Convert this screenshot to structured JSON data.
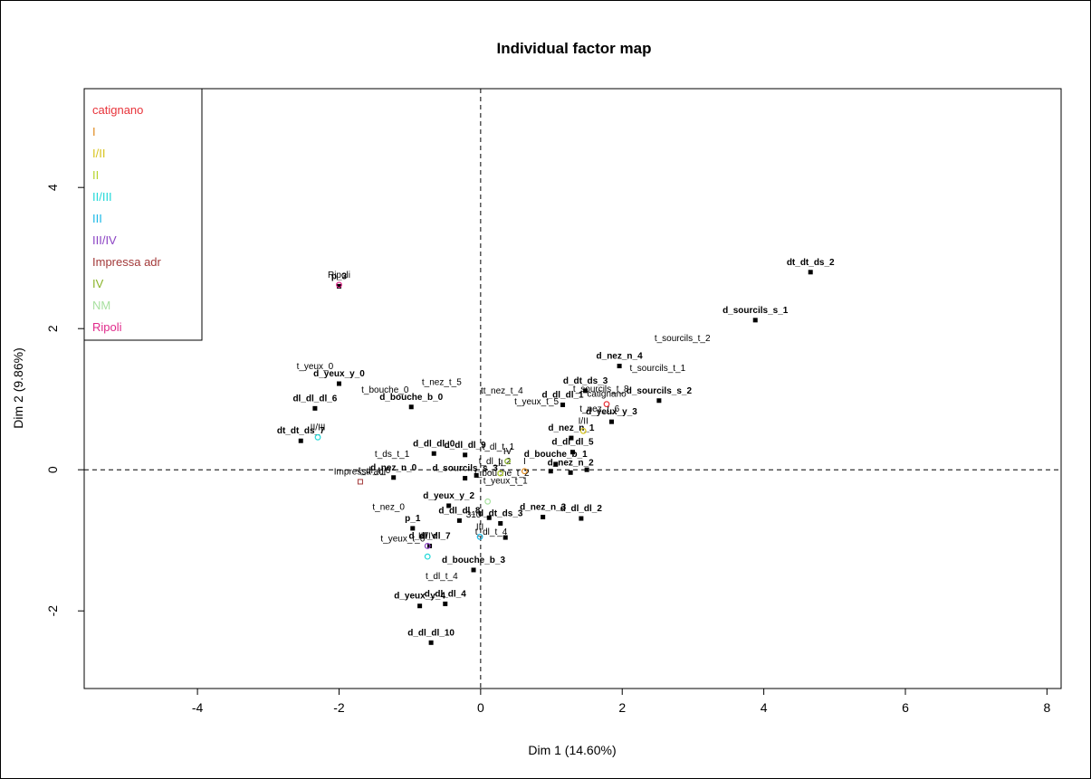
{
  "chart_data": {
    "type": "scatter",
    "title": "Individual factor map",
    "xlabel": "Dim 1 (14.60%)",
    "ylabel": "Dim 2 (9.86%)",
    "xlim": [
      -5.6,
      8.2
    ],
    "ylim": [
      -3.1,
      5.4
    ],
    "xticks": [
      -4,
      -2,
      0,
      2,
      4,
      6,
      8
    ],
    "yticks": [
      -2,
      0,
      2,
      4
    ],
    "xtick_labels": [
      "-4",
      "-2",
      "0",
      "2",
      "4",
      "6",
      "8"
    ],
    "ytick_labels": [
      "-2",
      "0",
      "2",
      "4"
    ],
    "reference_lines": {
      "x": 0,
      "y": 0,
      "style": "dashed"
    },
    "legend": {
      "position": "top-left",
      "entries": [
        {
          "label": "catignano",
          "color": "#e8333a"
        },
        {
          "label": "I",
          "color": "#e08a1e"
        },
        {
          "label": "I/II",
          "color": "#d8c41c"
        },
        {
          "label": "II",
          "color": "#b5d42a"
        },
        {
          "label": "II/III",
          "color": "#22d8d8"
        },
        {
          "label": "III",
          "color": "#1ab8e6"
        },
        {
          "label": "III/IV",
          "color": "#8c44c4"
        },
        {
          "label": "Impressa adr",
          "color": "#a33a3a"
        },
        {
          "label": "IV",
          "color": "#8ab42a"
        },
        {
          "label": "NM",
          "color": "#a8e0a0"
        },
        {
          "label": "Ripoli",
          "color": "#e0288a"
        }
      ]
    },
    "points": [
      {
        "x": 4.66,
        "y": 2.8,
        "label": "dt_dt_ds_2",
        "color": "#000000",
        "marker": "square",
        "bold": true
      },
      {
        "x": 3.88,
        "y": 2.12,
        "label": "d_sourcils_s_1",
        "color": "#000000",
        "marker": "square",
        "bold": true
      },
      {
        "x": 2.52,
        "y": 0.98,
        "label": "d_sourcils_s_2",
        "color": "#000000",
        "marker": "square",
        "bold": true
      },
      {
        "x": 1.96,
        "y": 1.47,
        "label": "d_nez_n_4",
        "color": "#000000",
        "marker": "square",
        "bold": true
      },
      {
        "x": 1.48,
        "y": 1.12,
        "label": "d_dt_ds_3",
        "color": "#000000",
        "marker": "square",
        "bold": true
      },
      {
        "x": 1.16,
        "y": 0.92,
        "label": "d_dl_dl_1",
        "color": "#000000",
        "marker": "square",
        "bold": true
      },
      {
        "x": 1.85,
        "y": 0.68,
        "label": "d_yeux_y_3",
        "color": "#000000",
        "marker": "square",
        "bold": true
      },
      {
        "x": 1.28,
        "y": 0.45,
        "label": "d_nez_n_1",
        "color": "#000000",
        "marker": "square",
        "bold": true
      },
      {
        "x": 1.3,
        "y": 0.25,
        "label": "d_dl_dl_5",
        "color": "#000000",
        "marker": "square",
        "bold": true
      },
      {
        "x": 1.06,
        "y": 0.08,
        "label": "d_bouche_b_1",
        "color": "#000000",
        "marker": "square",
        "bold": true
      },
      {
        "x": 1.27,
        "y": -0.04,
        "label": "d_nez_n_2",
        "color": "#000000",
        "marker": "square",
        "bold": true
      },
      {
        "x": 0.99,
        "y": -0.02,
        "label": "",
        "color": "#000000",
        "marker": "square",
        "bold": true
      },
      {
        "x": 1.42,
        "y": -0.69,
        "label": "d_dl_dl_2",
        "color": "#000000",
        "marker": "square",
        "bold": true
      },
      {
        "x": 0.88,
        "y": -0.67,
        "label": "d_nez_n_3",
        "color": "#000000",
        "marker": "square",
        "bold": true
      },
      {
        "x": 0.35,
        "y": -0.96,
        "label": "",
        "color": "#000000",
        "marker": "square",
        "bold": true
      },
      {
        "x": 0.28,
        "y": -0.76,
        "label": "d_dt_ds_3",
        "color": "#000000",
        "marker": "square",
        "bold": true
      },
      {
        "x": -0.1,
        "y": -1.42,
        "label": "d_bouche_b_3",
        "color": "#000000",
        "marker": "square",
        "bold": true
      },
      {
        "x": -0.5,
        "y": -1.9,
        "label": "d_dl_dl_4",
        "color": "#000000",
        "marker": "square",
        "bold": true
      },
      {
        "x": -0.86,
        "y": -1.93,
        "label": "d_yeux_y_4",
        "color": "#000000",
        "marker": "square",
        "bold": true
      },
      {
        "x": -0.7,
        "y": -2.45,
        "label": "d_dl_dl_10",
        "color": "#000000",
        "marker": "square",
        "bold": true
      },
      {
        "x": -0.72,
        "y": -1.08,
        "label": "d_dl_dl_7",
        "color": "#000000",
        "marker": "square",
        "bold": true
      },
      {
        "x": -0.96,
        "y": -0.83,
        "label": "p_1",
        "color": "#000000",
        "marker": "square",
        "bold": true
      },
      {
        "x": -0.45,
        "y": -0.51,
        "label": "d_yeux_y_2",
        "color": "#000000",
        "marker": "square",
        "bold": true
      },
      {
        "x": -0.3,
        "y": -0.72,
        "label": "d_dl_dl_8",
        "color": "#000000",
        "marker": "square",
        "bold": true
      },
      {
        "x": -0.22,
        "y": -0.12,
        "label": "d_sourcils_s_3",
        "color": "#000000",
        "marker": "square",
        "bold": true
      },
      {
        "x": -0.22,
        "y": 0.21,
        "label": "d_dl_dl_9",
        "color": "#000000",
        "marker": "square",
        "bold": true
      },
      {
        "x": -0.66,
        "y": 0.23,
        "label": "d_dl_dl_0",
        "color": "#000000",
        "marker": "square",
        "bold": true
      },
      {
        "x": -1.23,
        "y": -0.11,
        "label": "d_nez_n_0",
        "color": "#000000",
        "marker": "square",
        "bold": true
      },
      {
        "x": -0.98,
        "y": 0.89,
        "label": "d_bouche_b_0",
        "color": "#000000",
        "marker": "square",
        "bold": true
      },
      {
        "x": -2.0,
        "y": 1.22,
        "label": "d_yeux_y_0",
        "color": "#000000",
        "marker": "square",
        "bold": true
      },
      {
        "x": -2.34,
        "y": 0.87,
        "label": "dl_dl_dl_6",
        "color": "#000000",
        "marker": "square",
        "bold": true
      },
      {
        "x": -2.54,
        "y": 0.41,
        "label": "dt_dt_ds_7",
        "color": "#000000",
        "marker": "square",
        "bold": true
      },
      {
        "x": -2.0,
        "y": 2.6,
        "label": "p_3",
        "color": "#000000",
        "marker": "square",
        "bold": true
      },
      {
        "x": -0.06,
        "y": -0.08,
        "label": "",
        "color": "#000000",
        "marker": "square",
        "bold": true
      },
      {
        "x": 0.12,
        "y": -0.68,
        "label": "",
        "color": "#000000",
        "marker": "square",
        "bold": true
      },
      {
        "x": 1.5,
        "y": 0.0,
        "label": "",
        "color": "#000000",
        "marker": "square",
        "bold": true
      },
      {
        "x": 2.5,
        "y": 1.3,
        "label": "t_sourcils_t_1",
        "color": "#000000",
        "marker": "none",
        "bold": false
      },
      {
        "x": 2.85,
        "y": 1.72,
        "label": "t_sourcils_t_2",
        "color": "#000000",
        "marker": "none",
        "bold": false
      },
      {
        "x": 1.7,
        "y": 1.0,
        "label": "t_sourcils_t_8",
        "color": "#000000",
        "marker": "none",
        "bold": false
      },
      {
        "x": 1.68,
        "y": 0.72,
        "label": "t_nez_t_6",
        "color": "#000000",
        "marker": "none",
        "bold": false
      },
      {
        "x": 0.79,
        "y": 0.82,
        "label": "t_yeux_t_5",
        "color": "#000000",
        "marker": "none",
        "bold": false
      },
      {
        "x": 0.3,
        "y": 0.98,
        "label": "tt_nez_t_4",
        "color": "#000000",
        "marker": "none",
        "bold": false
      },
      {
        "x": -0.55,
        "y": 1.1,
        "label": "t_nez_t_5",
        "color": "#000000",
        "marker": "none",
        "bold": false
      },
      {
        "x": -1.35,
        "y": 0.99,
        "label": "t_bouche_0",
        "color": "#000000",
        "marker": "none",
        "bold": false
      },
      {
        "x": -2.34,
        "y": 1.32,
        "label": "t_yeux_0",
        "color": "#000000",
        "marker": "none",
        "bold": false
      },
      {
        "x": -1.25,
        "y": 0.08,
        "label": "t_ds_t_1",
        "color": "#000000",
        "marker": "none",
        "bold": false
      },
      {
        "x": -1.5,
        "y": -0.15,
        "label": "t_dl_t_0",
        "color": "#000000",
        "marker": "none",
        "bold": false
      },
      {
        "x": -1.3,
        "y": -0.67,
        "label": "t_nez_0",
        "color": "#000000",
        "marker": "none",
        "bold": false
      },
      {
        "x": -1.1,
        "y": -1.12,
        "label": "t_yeux_t_6",
        "color": "#000000",
        "marker": "none",
        "bold": false
      },
      {
        "x": 0.15,
        "y": -1.02,
        "label": "t_dl_t_4",
        "color": "#000000",
        "marker": "none",
        "bold": false
      },
      {
        "x": -0.55,
        "y": -1.65,
        "label": "t_dl_t_4",
        "color": "#000000",
        "marker": "none",
        "bold": false
      },
      {
        "x": 0.3,
        "y": -0.19,
        "label": "t_bouche_t_2",
        "color": "#000000",
        "marker": "none",
        "bold": false
      },
      {
        "x": 0.35,
        "y": -0.3,
        "label": "t_yeux_t_1",
        "color": "#000000",
        "marker": "none",
        "bold": false
      },
      {
        "x": 0.25,
        "y": 0.18,
        "label": "t_dl_t_1",
        "color": "#000000",
        "marker": "none",
        "bold": false
      },
      {
        "x": 0.2,
        "y": -0.02,
        "label": "t_dl_t_2",
        "color": "#000000",
        "marker": "none",
        "bold": false
      },
      {
        "x": 1.78,
        "y": 0.93,
        "label": "catignano",
        "color": "#e8333a",
        "marker": "circle",
        "bold": false
      },
      {
        "x": 1.45,
        "y": 0.55,
        "label": "I/II",
        "color": "#d8c41c",
        "marker": "circle",
        "bold": false
      },
      {
        "x": 0.62,
        "y": -0.02,
        "label": "I",
        "color": "#e08a1e",
        "marker": "circle",
        "bold": false
      },
      {
        "x": 0.38,
        "y": 0.12,
        "label": "IV",
        "color": "#8ab42a",
        "marker": "circle",
        "bold": false
      },
      {
        "x": 0.28,
        "y": -0.05,
        "label": "II",
        "color": "#b5d42a",
        "marker": "circle",
        "bold": false
      },
      {
        "x": -0.01,
        "y": -0.95,
        "label": "III",
        "color": "#1ab8e6",
        "marker": "circle",
        "bold": false
      },
      {
        "x": -0.75,
        "y": -1.08,
        "label": "III/IV",
        "color": "#8c44c4",
        "marker": "circle",
        "bold": false
      },
      {
        "x": -0.75,
        "y": -1.23,
        "label": "",
        "color": "#22d8d8",
        "marker": "circle",
        "bold": false
      },
      {
        "x": -2.3,
        "y": 0.46,
        "label": "II/III",
        "color": "#22d8d8",
        "marker": "circle",
        "bold": false
      },
      {
        "x": -1.7,
        "y": -0.17,
        "label": "Impressa adr",
        "color": "#a33a3a",
        "marker": "square-open",
        "bold": false
      },
      {
        "x": -2.0,
        "y": 2.62,
        "label": "Ripoli",
        "color": "#e0288a",
        "marker": "circle",
        "bold": false
      },
      {
        "x": 0.1,
        "y": -0.45,
        "label": "",
        "color": "#a8e0a0",
        "marker": "circle",
        "bold": false
      },
      {
        "x": -0.1,
        "y": -0.78,
        "label": "310",
        "color": "#1ab8e6",
        "marker": "none",
        "bold": false
      }
    ]
  }
}
